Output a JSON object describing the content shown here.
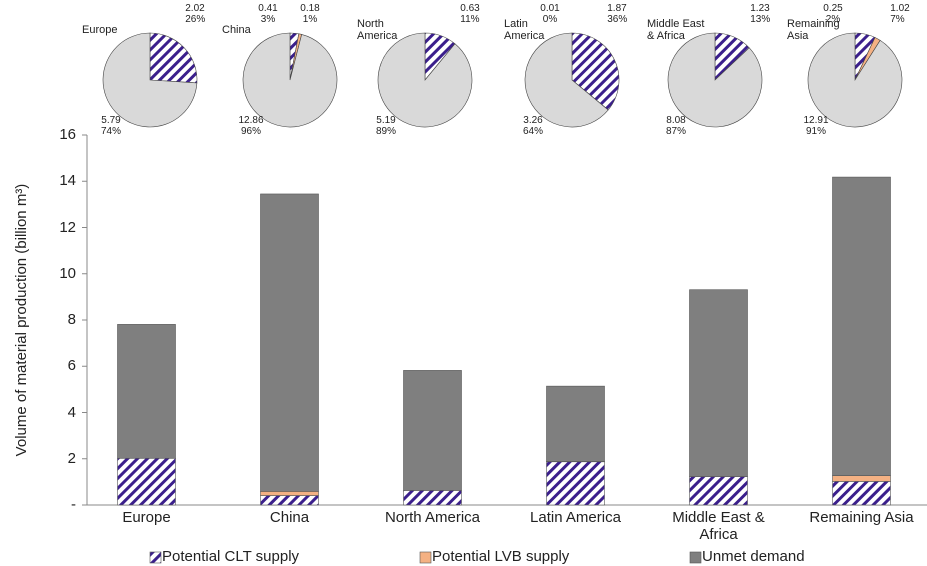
{
  "chart_data": [
    {
      "type": "bar",
      "stacked": true,
      "y_label": "Volume of material production (billion m³)",
      "categories": [
        "Europe",
        "China",
        "North America",
        "Latin America",
        "Middle East & Africa",
        "Remaining Asia"
      ],
      "series": [
        {
          "name": "Potential CLT supply",
          "color": "#3b1f8c",
          "pattern": "hatch",
          "values": [
            2.02,
            0.41,
            0.63,
            1.87,
            1.23,
            1.02
          ]
        },
        {
          "name": "Potential LVB supply",
          "color": "#f4b183",
          "values": [
            0,
            0.18,
            0,
            0.01,
            0,
            0.25
          ]
        },
        {
          "name": "Unmet demand",
          "color": "#7f7f7f",
          "values": [
            5.79,
            12.86,
            5.19,
            3.26,
            8.08,
            12.91
          ]
        }
      ],
      "ylim": [
        0,
        16
      ],
      "yticks": [
        {
          "value": 0,
          "label": "-"
        },
        2,
        4,
        6,
        8,
        10,
        12,
        14,
        16
      ],
      "legend": "bottom"
    },
    {
      "type": "pie",
      "title": "Europe",
      "values": [
        26,
        74
      ],
      "value_labels": [
        "26%",
        "74%"
      ],
      "amounts": [
        2.02,
        5.79
      ],
      "colors": [
        "#3b1f8c",
        "#d9d9d9"
      ],
      "patterns": [
        "hatch",
        null
      ]
    },
    {
      "type": "pie",
      "title": "China",
      "values": [
        3,
        1,
        96
      ],
      "value_labels": [
        "3%",
        "1%",
        "96%"
      ],
      "amounts": [
        0.41,
        0.18,
        12.86
      ],
      "colors": [
        "#3b1f8c",
        "#f4b183",
        "#d9d9d9"
      ],
      "patterns": [
        "hatch",
        null,
        null
      ]
    },
    {
      "type": "pie",
      "title": "North America",
      "values": [
        11,
        89
      ],
      "value_labels": [
        "11%",
        "89%"
      ],
      "amounts": [
        0.63,
        5.19
      ],
      "colors": [
        "#3b1f8c",
        "#d9d9d9"
      ],
      "patterns": [
        "hatch",
        null
      ]
    },
    {
      "type": "pie",
      "title": "Latin America",
      "values": [
        36,
        0,
        64
      ],
      "value_labels": [
        "36%",
        "0%",
        "64%"
      ],
      "amounts": [
        1.87,
        0.01,
        3.26
      ],
      "colors": [
        "#3b1f8c",
        "#f4b183",
        "#d9d9d9"
      ],
      "patterns": [
        "hatch",
        null,
        null
      ]
    },
    {
      "type": "pie",
      "title": "Middle East & Africa",
      "values": [
        13,
        87
      ],
      "value_labels": [
        "13%",
        "87%"
      ],
      "amounts": [
        1.23,
        8.08
      ],
      "colors": [
        "#3b1f8c",
        "#d9d9d9"
      ],
      "patterns": [
        "hatch",
        null
      ]
    },
    {
      "type": "pie",
      "title": "Remaining Asia",
      "values": [
        7,
        2,
        91
      ],
      "value_labels": [
        "7%",
        "2%",
        "91%"
      ],
      "amounts": [
        1.02,
        0.25,
        12.91
      ],
      "colors": [
        "#3b1f8c",
        "#f4b183",
        "#d9d9d9"
      ],
      "patterns": [
        "hatch",
        null,
        null
      ]
    }
  ]
}
